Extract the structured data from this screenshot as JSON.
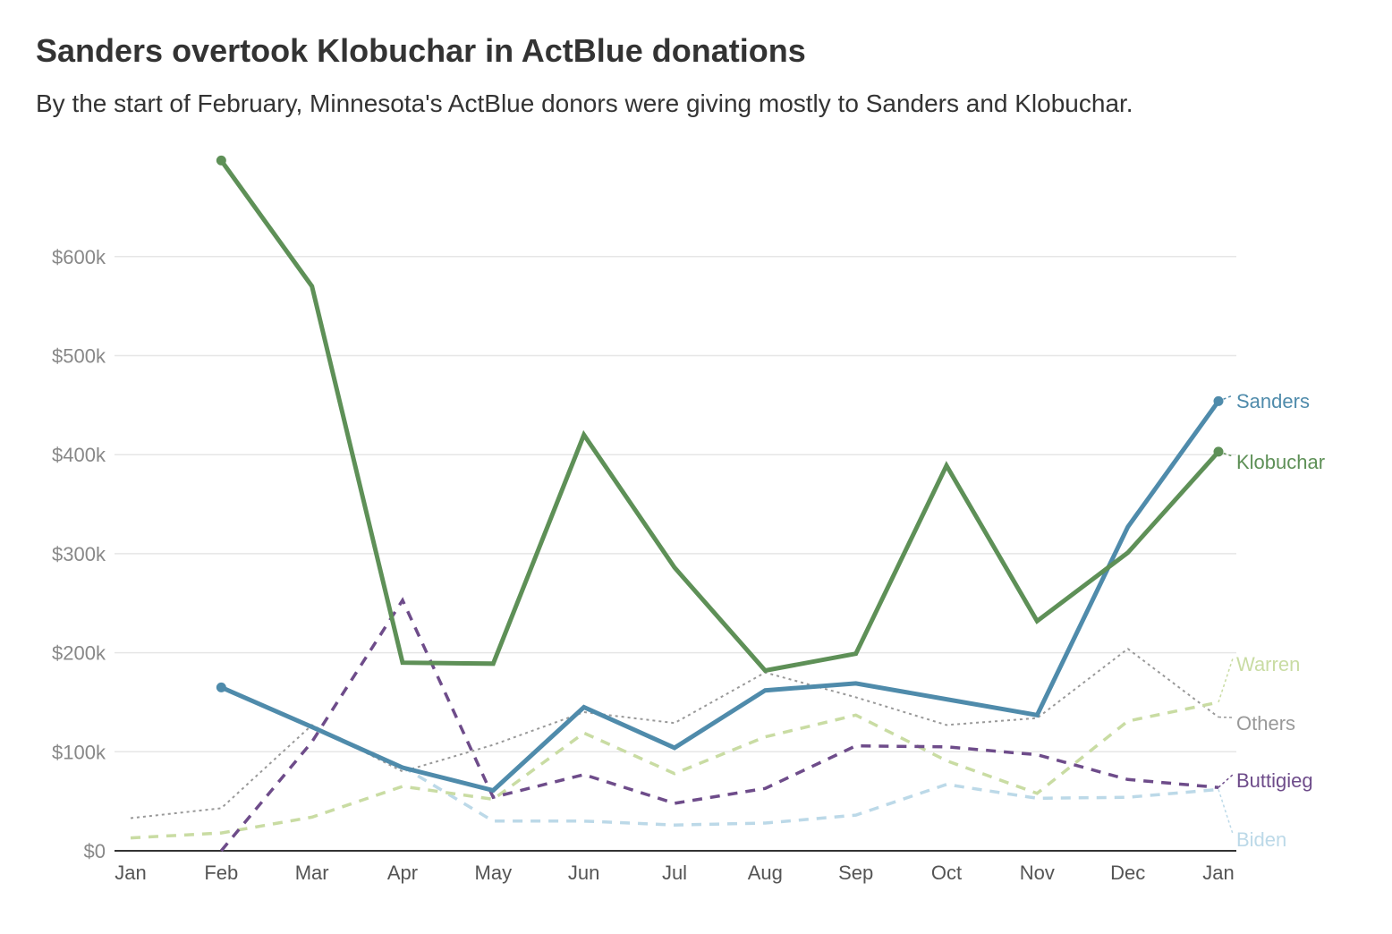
{
  "title": "Sanders overtook Klobuchar in ActBlue donations",
  "subtitle": "By the start of February, Minnesota's ActBlue donors were giving mostly to Sanders and Klobuchar.",
  "chart_data": {
    "type": "line",
    "title": "Sanders overtook Klobuchar in ActBlue donations",
    "subtitle": "By the start of February, Minnesota's ActBlue donors were giving mostly to Sanders and Klobuchar.",
    "xlabel": "",
    "ylabel": "",
    "ylim": [
      0,
      600000
    ],
    "yticks": [
      0,
      100000,
      200000,
      300000,
      400000,
      500000,
      600000
    ],
    "ytick_labels": [
      "$0",
      "$100k",
      "$200k",
      "$300k",
      "$400k",
      "$500k",
      "$600k"
    ],
    "categories": [
      "Jan",
      "Feb",
      "Mar",
      "Apr",
      "May",
      "Jun",
      "Jul",
      "Aug",
      "Sep",
      "Oct",
      "Nov",
      "Dec",
      "Jan"
    ],
    "grid": true,
    "legend": "inline labels at right",
    "series": [
      {
        "name": "Others",
        "color": "#999999",
        "style": "dotted",
        "values": [
          33000,
          43000,
          127000,
          80000,
          107000,
          140000,
          129000,
          180000,
          155000,
          127000,
          134000,
          204000,
          135000
        ]
      },
      {
        "name": "Biden",
        "color": "#bcd9e8",
        "style": "dashed",
        "values": [
          null,
          null,
          null,
          85000,
          30000,
          30000,
          26000,
          28000,
          36000,
          67000,
          53000,
          54000,
          62000
        ]
      },
      {
        "name": "Warren",
        "color": "#c9dca3",
        "style": "dashed",
        "values": [
          13000,
          18000,
          34000,
          65000,
          52000,
          119000,
          78000,
          115000,
          137000,
          91000,
          58000,
          131000,
          150000
        ]
      },
      {
        "name": "Buttigieg",
        "color": "#6e4c8a",
        "style": "dashed",
        "values": [
          null,
          0,
          110000,
          253000,
          54000,
          77000,
          48000,
          63000,
          106000,
          105000,
          97000,
          72000,
          64000
        ]
      },
      {
        "name": "Sanders",
        "color": "#4f8bab",
        "style": "solid",
        "values": [
          null,
          165000,
          125000,
          84000,
          61000,
          145000,
          104000,
          162000,
          169000,
          153000,
          137000,
          327000,
          454000
        ]
      },
      {
        "name": "Klobuchar",
        "color": "#5e9057",
        "style": "solid",
        "values": [
          null,
          697000,
          570000,
          190000,
          189000,
          420000,
          286000,
          182000,
          199000,
          389000,
          232000,
          301000,
          403000
        ]
      }
    ]
  }
}
